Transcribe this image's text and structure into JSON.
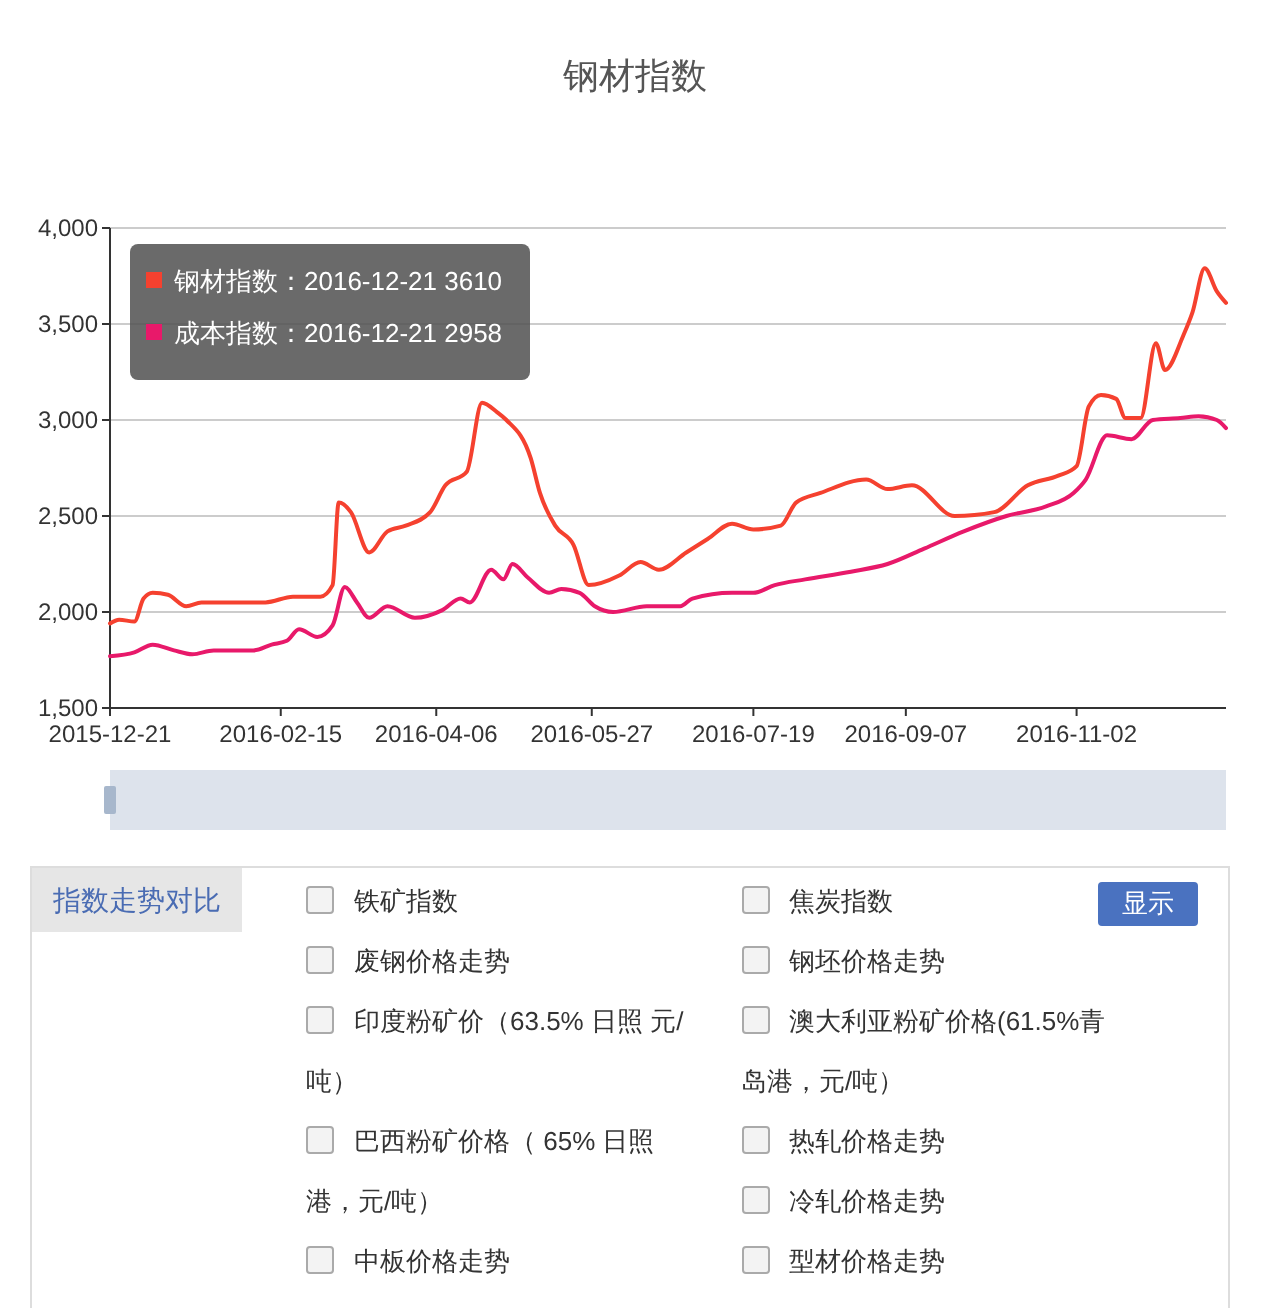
{
  "chart_data": [
    {
      "type": "line",
      "title": "钢材指数",
      "xlim": [
        "2015-12-21",
        "2016-12-21"
      ],
      "xticks": [
        "2015-12-21",
        "2016-02-15",
        "2016-04-06",
        "2016-05-27",
        "2016-07-19",
        "2016-09-07",
        "2016-11-02"
      ],
      "ylim": [
        1500,
        4000
      ],
      "yticks": [
        {
          "value": 1500,
          "label": "1,500"
        },
        {
          "value": 2000,
          "label": "2,000"
        },
        {
          "value": 2500,
          "label": "2,500"
        },
        {
          "value": 3000,
          "label": "3,000"
        },
        {
          "value": 3500,
          "label": "3,500"
        },
        {
          "value": 4000,
          "label": "4,000"
        }
      ],
      "grid": "y",
      "legend": "top left",
      "marker": "none",
      "line_style": "solid",
      "series": [
        {
          "name": "钢材指数",
          "color": "#f5412f",
          "x": [
            "2015-12-21",
            "2015-12-24",
            "2015-12-29",
            "2016-01-01",
            "2016-01-04",
            "2016-01-09",
            "2016-01-15",
            "2016-01-20",
            "2016-02-10",
            "2016-02-19",
            "2016-02-28",
            "2016-03-03",
            "2016-03-05",
            "2016-03-09",
            "2016-03-15",
            "2016-03-21",
            "2016-03-27",
            "2016-04-04",
            "2016-04-09",
            "2016-04-16",
            "2016-04-21",
            "2016-04-26",
            "2016-04-29",
            "2016-05-07",
            "2016-05-10",
            "2016-05-15",
            "2016-05-21",
            "2016-05-26",
            "2016-06-05",
            "2016-06-12",
            "2016-06-18",
            "2016-06-27",
            "2016-07-04",
            "2016-07-12",
            "2016-07-19",
            "2016-07-28",
            "2016-08-02",
            "2016-08-10",
            "2016-08-25",
            "2016-09-01",
            "2016-09-09",
            "2016-09-23",
            "2016-10-06",
            "2016-10-17",
            "2016-10-27",
            "2016-11-02",
            "2016-11-06",
            "2016-11-10",
            "2016-11-15",
            "2016-11-18",
            "2016-11-23",
            "2016-11-28",
            "2016-12-01",
            "2016-12-07",
            "2016-12-10",
            "2016-12-14",
            "2016-12-18",
            "2016-12-21"
          ],
          "values": [
            1940,
            1960,
            1950,
            2070,
            2100,
            2090,
            2030,
            2050,
            2050,
            2080,
            2080,
            2140,
            2570,
            2520,
            2310,
            2420,
            2450,
            2520,
            2660,
            2730,
            3090,
            3040,
            3000,
            2800,
            2620,
            2450,
            2350,
            2140,
            2190,
            2260,
            2220,
            2310,
            2380,
            2460,
            2430,
            2450,
            2570,
            2620,
            2690,
            2640,
            2660,
            2500,
            2520,
            2660,
            2710,
            2760,
            3070,
            3130,
            3110,
            3010,
            3010,
            3400,
            3260,
            3440,
            3560,
            3790,
            3670,
            3610
          ]
        },
        {
          "name": "成本指数",
          "color": "#e8196a",
          "x": [
            "2015-12-21",
            "2015-12-29",
            "2016-01-04",
            "2016-01-11",
            "2016-01-17",
            "2016-01-24",
            "2016-02-06",
            "2016-02-12",
            "2016-02-17",
            "2016-02-21",
            "2016-02-27",
            "2016-03-03",
            "2016-03-07",
            "2016-03-11",
            "2016-03-15",
            "2016-03-21",
            "2016-03-30",
            "2016-04-08",
            "2016-04-14",
            "2016-04-17",
            "2016-04-24",
            "2016-04-28",
            "2016-05-01",
            "2016-05-06",
            "2016-05-13",
            "2016-05-17",
            "2016-05-23",
            "2016-05-28",
            "2016-06-03",
            "2016-06-14",
            "2016-06-25",
            "2016-06-29",
            "2016-07-12",
            "2016-07-19",
            "2016-07-26",
            "2016-08-05",
            "2016-08-20",
            "2016-09-01",
            "2016-09-13",
            "2016-09-26",
            "2016-10-10",
            "2016-10-23",
            "2016-11-01",
            "2016-11-05",
            "2016-11-12",
            "2016-11-20",
            "2016-11-27",
            "2016-12-06",
            "2016-12-12",
            "2016-12-18",
            "2016-12-21"
          ],
          "values": [
            1770,
            1790,
            1830,
            1800,
            1780,
            1800,
            1800,
            1830,
            1850,
            1910,
            1870,
            1930,
            2130,
            2050,
            1970,
            2030,
            1970,
            2010,
            2070,
            2050,
            2220,
            2170,
            2250,
            2180,
            2100,
            2120,
            2100,
            2030,
            2000,
            2030,
            2030,
            2070,
            2100,
            2100,
            2140,
            2170,
            2210,
            2250,
            2330,
            2420,
            2500,
            2550,
            2620,
            2690,
            2920,
            2900,
            3000,
            3010,
            3020,
            3000,
            2958
          ]
        }
      ],
      "annotations": [
        "：2016-12-21 3610",
        "：2016-12-21 2958"
      ]
    },
    {
      "type": "other",
      "title": "指数走势对比",
      "annotations": [
        "铁矿指数",
        "废钢价格走势",
        "印度粉矿价（63.5% 日照 元/吨）",
        "巴西粉矿价格（ 65% 日照港，元/吨）",
        "中板价格走势",
        "焦炭指数",
        "钢坯价格走势",
        "澳大利亚粉矿价格(61.5%青岛港，元/吨）",
        "热轧价格走势",
        "冷轧价格走势",
        "型材价格走势",
        "显示"
      ]
    }
  ]
}
